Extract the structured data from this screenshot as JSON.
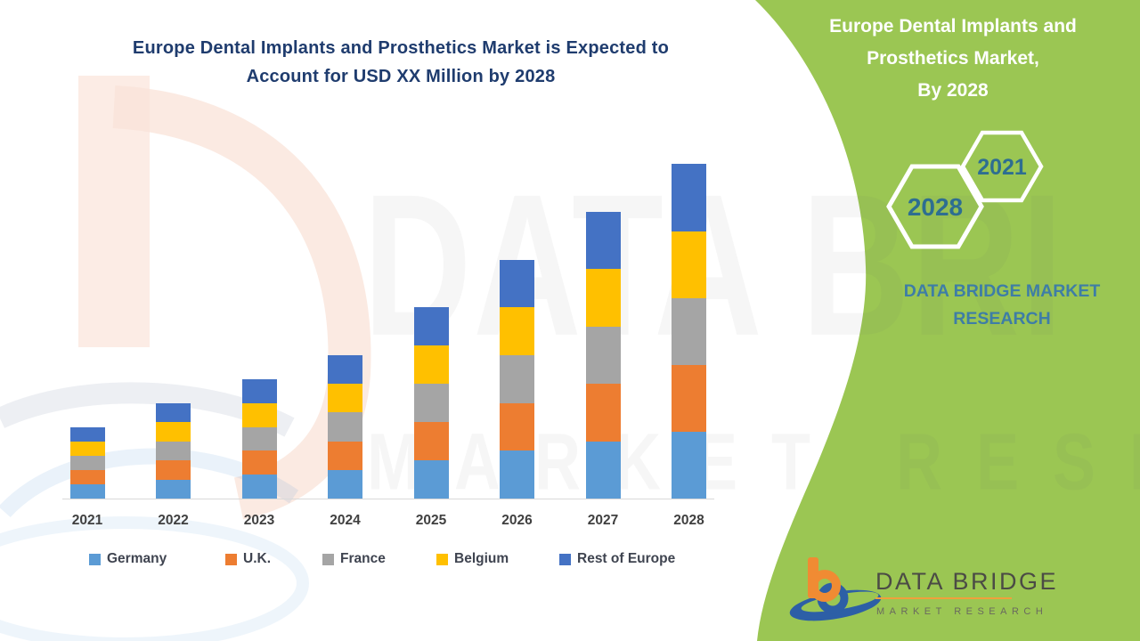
{
  "main_title": {
    "line1": "Europe Dental Implants and Prosthetics Market is Expected to",
    "line2": "Account for USD XX Million by 2028"
  },
  "side_panel": {
    "title_lines": [
      "Europe Dental Implants and",
      "Prosthetics Market,",
      "By 2028"
    ],
    "hexagon_small_year": "2021",
    "hexagon_large_year": "2028",
    "brand_line1": "DATA BRIDGE MARKET",
    "brand_line2": "RESEARCH"
  },
  "footer_logo": {
    "name": "DATA BRIDGE",
    "tagline": "MARKET RESEARCH"
  },
  "watermark": {
    "text_top": "DATA BRI",
    "text_bottom": "MARKET RESE"
  },
  "chart_data": {
    "type": "bar",
    "stacked": true,
    "title": "Europe Dental Implants and Prosthetics Market is Expected to Account for USD XX Million by 2028",
    "categories": [
      "2021",
      "2022",
      "2023",
      "2024",
      "2025",
      "2026",
      "2027",
      "2028"
    ],
    "series": [
      {
        "name": "Germany",
        "color": "#5B9BD5",
        "values": [
          0.6,
          0.8,
          1.0,
          1.2,
          1.6,
          2.0,
          2.4,
          2.8
        ]
      },
      {
        "name": "U.K.",
        "color": "#ED7D31",
        "values": [
          0.6,
          0.8,
          1.0,
          1.2,
          1.6,
          2.0,
          2.4,
          2.8
        ]
      },
      {
        "name": "France",
        "color": "#A5A5A5",
        "values": [
          0.6,
          0.8,
          1.0,
          1.2,
          1.6,
          2.0,
          2.4,
          2.8
        ]
      },
      {
        "name": "Belgium",
        "color": "#FFC000",
        "values": [
          0.6,
          0.8,
          1.0,
          1.2,
          1.6,
          2.0,
          2.4,
          2.8
        ]
      },
      {
        "name": "Rest of Europe",
        "color": "#4472C4",
        "values": [
          0.6,
          0.8,
          1.0,
          1.2,
          1.6,
          2.0,
          2.4,
          2.8
        ]
      }
    ],
    "stack_totals": [
      3,
      4,
      5,
      6,
      8,
      10,
      12,
      14
    ],
    "value_axis": {
      "visible": false,
      "note": "values undisclosed (USD XX Million); series values are relative units read from bar heights"
    },
    "gridlines": false,
    "legend_position": "bottom"
  },
  "colors": {
    "panel_green": "#9BC653",
    "title_navy": "#1F3C6E",
    "hexagon_year_text": "#2E6E91",
    "panel_brand_blue": "#3E7DA6",
    "axis_label": "#404040",
    "axis_line": "#D9D9D9",
    "logo_orange": "#F08B33",
    "logo_blue": "#2D5FA6",
    "logo_text": "#4B4B45"
  }
}
